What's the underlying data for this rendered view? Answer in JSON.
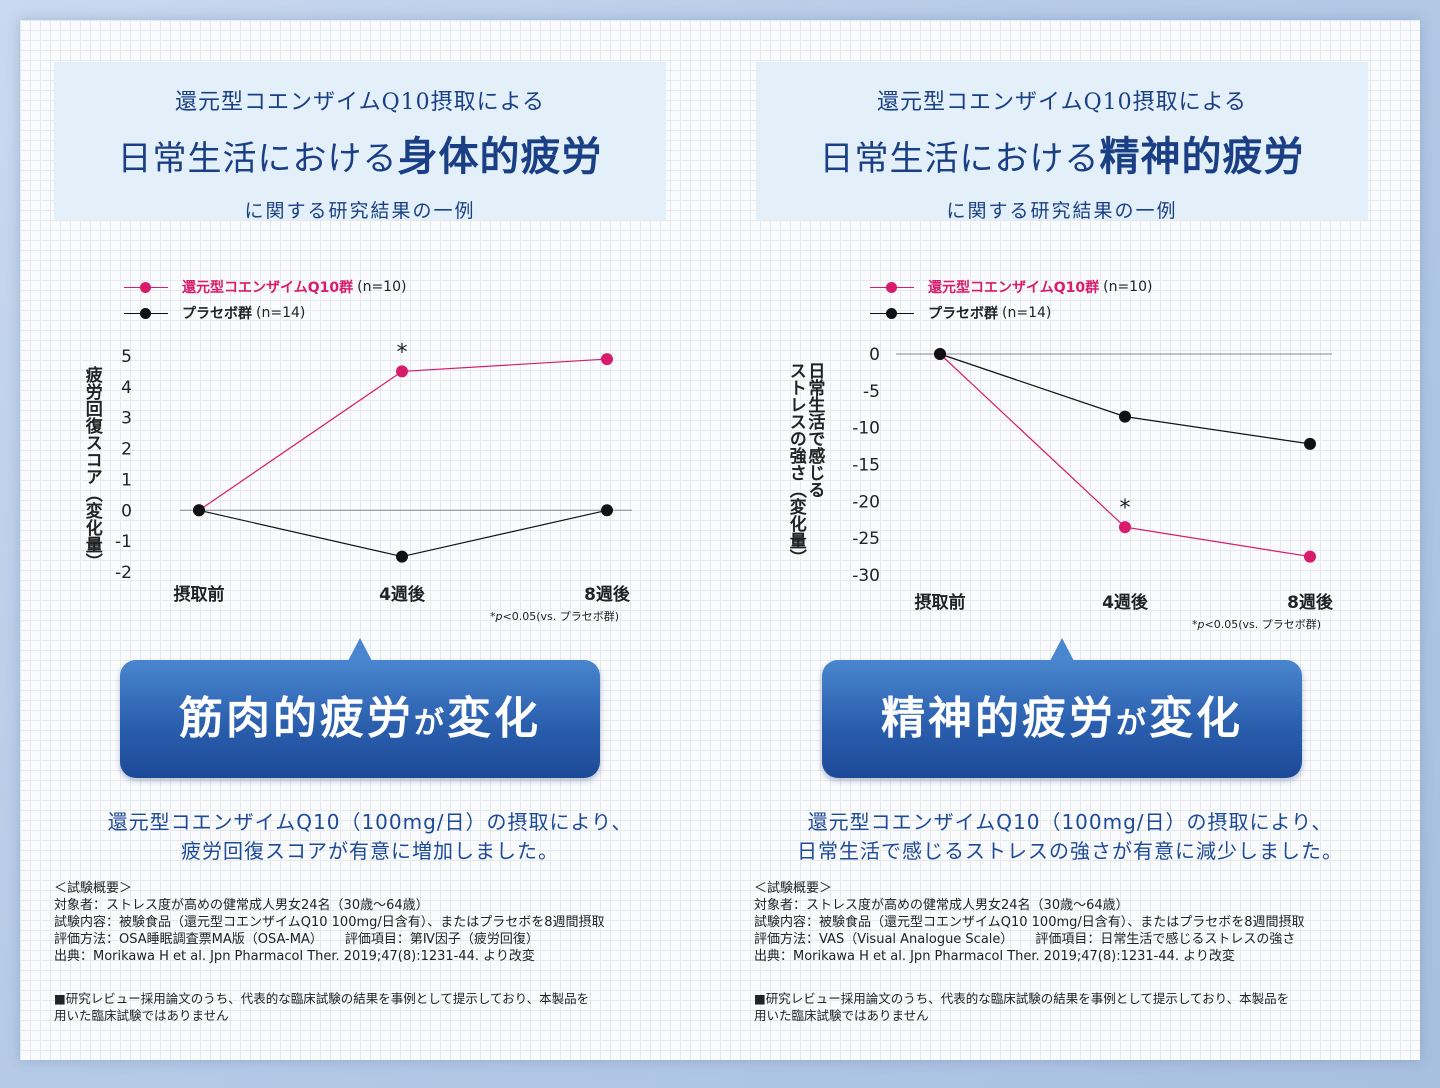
{
  "colors": {
    "accent_pink": "#d81b6a",
    "placebo": "#111111",
    "navy": "#1b3f84"
  },
  "left": {
    "header": {
      "line1": "還元型コエンザイムQ10摂取による",
      "line2_prefix": "日常生活における",
      "line2_em": "身体的疲労",
      "line3": "に関する研究結果の一例"
    },
    "legend": {
      "pink_label": "還元型コエンザイムQ10群",
      "pink_n": "(n=10)",
      "black_label": "プラセボ群",
      "black_n": "(n=14)"
    },
    "ylabel": "疲労回復スコア（変化量）",
    "note_star": "*",
    "note_p": "p",
    "note_rest": "<0.05(vs. プラセボ群)",
    "callout_main": "筋肉的疲労",
    "callout_small": "が",
    "callout_end": "変化",
    "result_line1": "還元型コエンザイムQ10（100mg/日）の摂取により、",
    "result_line2": "疲労回復スコアが有意に増加しました。",
    "summary_title": "＜試験概要＞",
    "summary_target": "対象者：ストレス度が高めの健常成人男女24名（30歳〜64歳）",
    "summary_content": "試験内容：被験食品（還元型コエンザイムQ10 100mg/日含有）、またはプラセボを8週間摂取",
    "summary_method": "評価方法：OSA睡眠調査票MA版（OSA-MA）",
    "summary_item": "評価項目：第Ⅳ因子（疲労回復）",
    "summary_source": "出典：Morikawa H et al. Jpn Pharmacol Ther. 2019;47(8):1231-44. より改変",
    "disclaimer_line1": "■研究レビュー採用論文のうち、代表的な臨床試験の結果を事例として提示しており、本製品を",
    "disclaimer_line2": "用いた臨床試験ではありません"
  },
  "right": {
    "header": {
      "line1": "還元型コエンザイムQ10摂取による",
      "line2_prefix": "日常生活における",
      "line2_em": "精神的疲労",
      "line3": "に関する研究結果の一例"
    },
    "legend": {
      "pink_label": "還元型コエンザイムQ10群",
      "pink_n": "(n=10)",
      "black_label": "プラセボ群",
      "black_n": "(n=14)"
    },
    "ylabel_col1": "日常生活で感じる",
    "ylabel_col2": "ストレスの強さ（変化量）",
    "note_star": "*",
    "note_p": "p",
    "note_rest": "<0.05(vs. プラセボ群)",
    "callout_main": "精神的疲労",
    "callout_small": "が",
    "callout_end": "変化",
    "result_line1": "還元型コエンザイムQ10（100mg/日）の摂取により、",
    "result_line2": "日常生活で感じるストレスの強さが有意に減少しました。",
    "summary_title": "＜試験概要＞",
    "summary_target": "対象者：ストレス度が高めの健常成人男女24名（30歳〜64歳）",
    "summary_content": "試験内容：被験食品（還元型コエンザイムQ10 100mg/日含有）、またはプラセボを8週間摂取",
    "summary_method": "評価方法：VAS（Visual Analogue Scale）",
    "summary_item": "評価項目：日常生活で感じるストレスの強さ",
    "summary_source": "出典：Morikawa H et al. Jpn Pharmacol Ther. 2019;47(8):1231-44. より改変",
    "disclaimer_line1": "■研究レビュー採用論文のうち、代表的な臨床試験の結果を事例として提示しており、本製品を",
    "disclaimer_line2": "用いた臨床試験ではありません"
  },
  "chart_data": [
    {
      "type": "line",
      "categories": [
        "摂取前",
        "4週後",
        "8週後"
      ],
      "ylim": [
        -2,
        5
      ],
      "yticks": [
        5,
        4,
        3,
        2,
        1,
        0,
        -1,
        -2
      ],
      "series": [
        {
          "name": "還元型コエンザイムQ10群",
          "color": "#d81b6a",
          "values": [
            0,
            4.5,
            4.9
          ]
        },
        {
          "name": "プラセボ群",
          "color": "#111111",
          "values": [
            0,
            -1.5,
            0
          ]
        }
      ],
      "significance": [
        {
          "category": "4週後",
          "label": "*"
        }
      ]
    },
    {
      "type": "line",
      "categories": [
        "摂取前",
        "4週後",
        "8週後"
      ],
      "ylim": [
        -30,
        0
      ],
      "yticks": [
        0,
        -5,
        -10,
        -15,
        -20,
        -25,
        -30
      ],
      "series": [
        {
          "name": "還元型コエンザイムQ10群",
          "color": "#d81b6a",
          "values": [
            0,
            -23.5,
            -27.5
          ]
        },
        {
          "name": "プラセボ群",
          "color": "#111111",
          "values": [
            0,
            -8.5,
            -12.2
          ]
        }
      ],
      "significance": [
        {
          "category": "4週後",
          "label": "*"
        }
      ]
    }
  ]
}
